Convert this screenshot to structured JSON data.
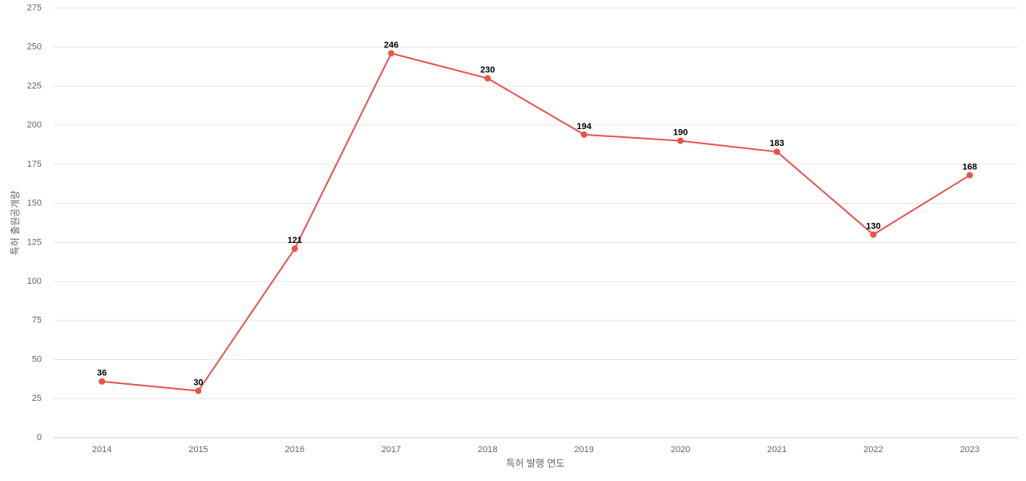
{
  "chart_data": {
    "type": "line",
    "categories": [
      "2014",
      "2015",
      "2016",
      "2017",
      "2018",
      "2019",
      "2020",
      "2021",
      "2022",
      "2023"
    ],
    "series": [
      {
        "color": "#e8534f",
        "values": [
          36,
          30,
          121,
          246,
          230,
          194,
          190,
          183,
          130,
          168
        ]
      }
    ],
    "x_label": "특허 발행 연도",
    "y_label": "특허 출원공개량",
    "ylim": [
      0,
      275
    ],
    "yticks": [
      0,
      25,
      50,
      75,
      100,
      125,
      150,
      175,
      200,
      225,
      250,
      275
    ],
    "grid": true
  }
}
